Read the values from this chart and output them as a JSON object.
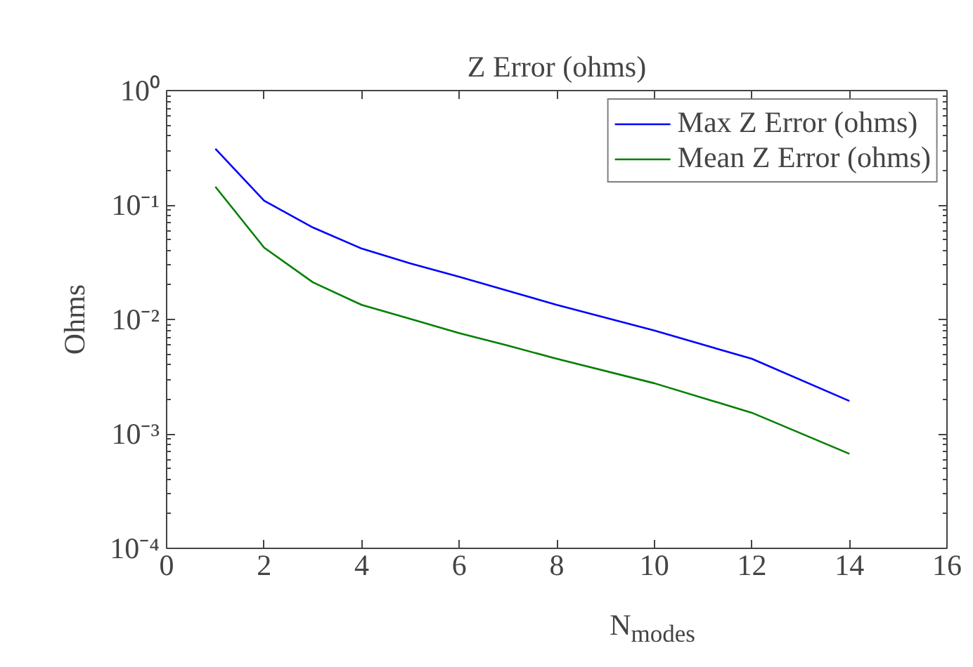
{
  "chart_data": {
    "type": "line",
    "title": "Z Error (ohms)",
    "xlabel": "N$_{modes}$",
    "ylabel": "Ohms",
    "x": [
      1,
      2,
      3,
      4,
      5,
      6,
      7,
      8,
      10,
      12,
      14
    ],
    "series": [
      {
        "name": "Max Z Error (ohms)",
        "color": "#0000ff",
        "values": [
          0.31,
          0.109,
          0.0636,
          0.0416,
          0.0308,
          0.0236,
          0.0178,
          0.0134,
          0.008,
          0.00453,
          0.00194
        ]
      },
      {
        "name": "Mean Z Error (ohms)",
        "color": "#008000",
        "values": [
          0.1445,
          0.0424,
          0.0211,
          0.0134,
          0.0101,
          0.0076,
          0.0059,
          0.00453,
          0.00277,
          0.00153,
          0.00067
        ]
      }
    ],
    "log": "y",
    "xlim": [
      0,
      16
    ],
    "ylim": [
      0.0001,
      1
    ],
    "xticks": [
      0,
      2,
      4,
      6,
      8,
      10,
      12,
      14,
      16
    ],
    "yticks": [
      {
        "value": 0.0001,
        "label": "10⁻⁴"
      },
      {
        "value": 0.001,
        "label": "10⁻³"
      },
      {
        "value": 0.01,
        "label": "10⁻²"
      },
      {
        "value": 0.1,
        "label": "10⁻¹"
      },
      {
        "value": 1,
        "label": "10⁰"
      }
    ],
    "grid": false,
    "legend": "top right",
    "marker": "none",
    "line_style": "solid"
  }
}
